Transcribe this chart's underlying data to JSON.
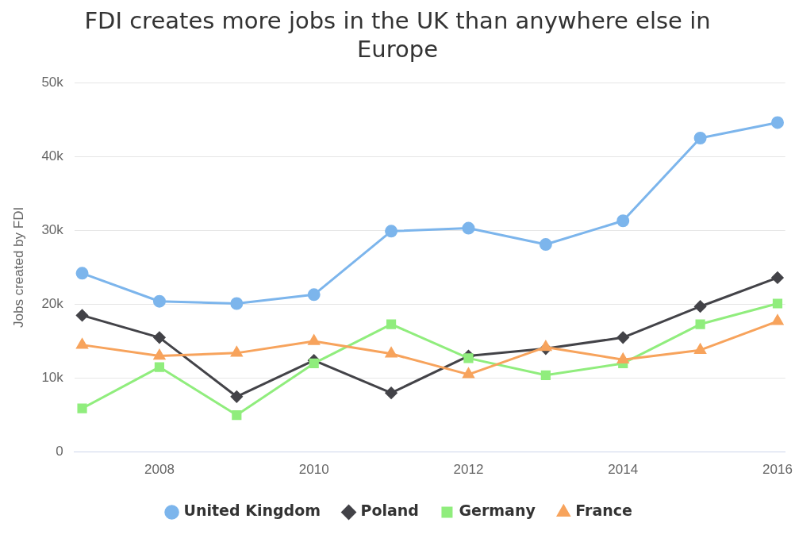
{
  "chart_data": {
    "type": "line",
    "title": "FDI creates more jobs in the UK than anywhere else in Europe",
    "ylabel": "Jobs created by FDI",
    "x": [
      2007,
      2008,
      2009,
      2010,
      2011,
      2012,
      2013,
      2014,
      2015,
      2016
    ],
    "xlim": [
      2006.9,
      2016.1
    ],
    "xticks": [
      2008,
      2010,
      2012,
      2014,
      2016
    ],
    "ylim": [
      0,
      50000
    ],
    "yticks": [
      0,
      {
        "value": 10000,
        "label": "10k"
      },
      {
        "value": 20000,
        "label": "20k"
      },
      {
        "value": 30000,
        "label": "30k"
      },
      {
        "value": 40000,
        "label": "40k"
      },
      {
        "value": 50000,
        "label": "50k"
      }
    ],
    "grid": "y",
    "legend": "bottom",
    "line_style": "solid",
    "series": [
      {
        "name": "United Kingdom",
        "color": "#7cb5ec",
        "marker": "circle",
        "values": [
          24200,
          20400,
          20100,
          21300,
          29900,
          30300,
          28100,
          31300,
          42500,
          44600
        ]
      },
      {
        "name": "Poland",
        "color": "#434348",
        "marker": "diamond",
        "values": [
          18500,
          15500,
          7500,
          12400,
          8000,
          13000,
          14000,
          15500,
          19700,
          23600
        ]
      },
      {
        "name": "Germany",
        "color": "#90ed7d",
        "marker": "square",
        "values": [
          5900,
          11500,
          5000,
          12000,
          17300,
          12700,
          10400,
          12000,
          17300,
          20100
        ]
      },
      {
        "name": "France",
        "color": "#f7a35c",
        "marker": "triangle",
        "values": [
          14500,
          13000,
          13400,
          15000,
          13300,
          10500,
          14200,
          12500,
          13800,
          17700
        ]
      }
    ]
  }
}
